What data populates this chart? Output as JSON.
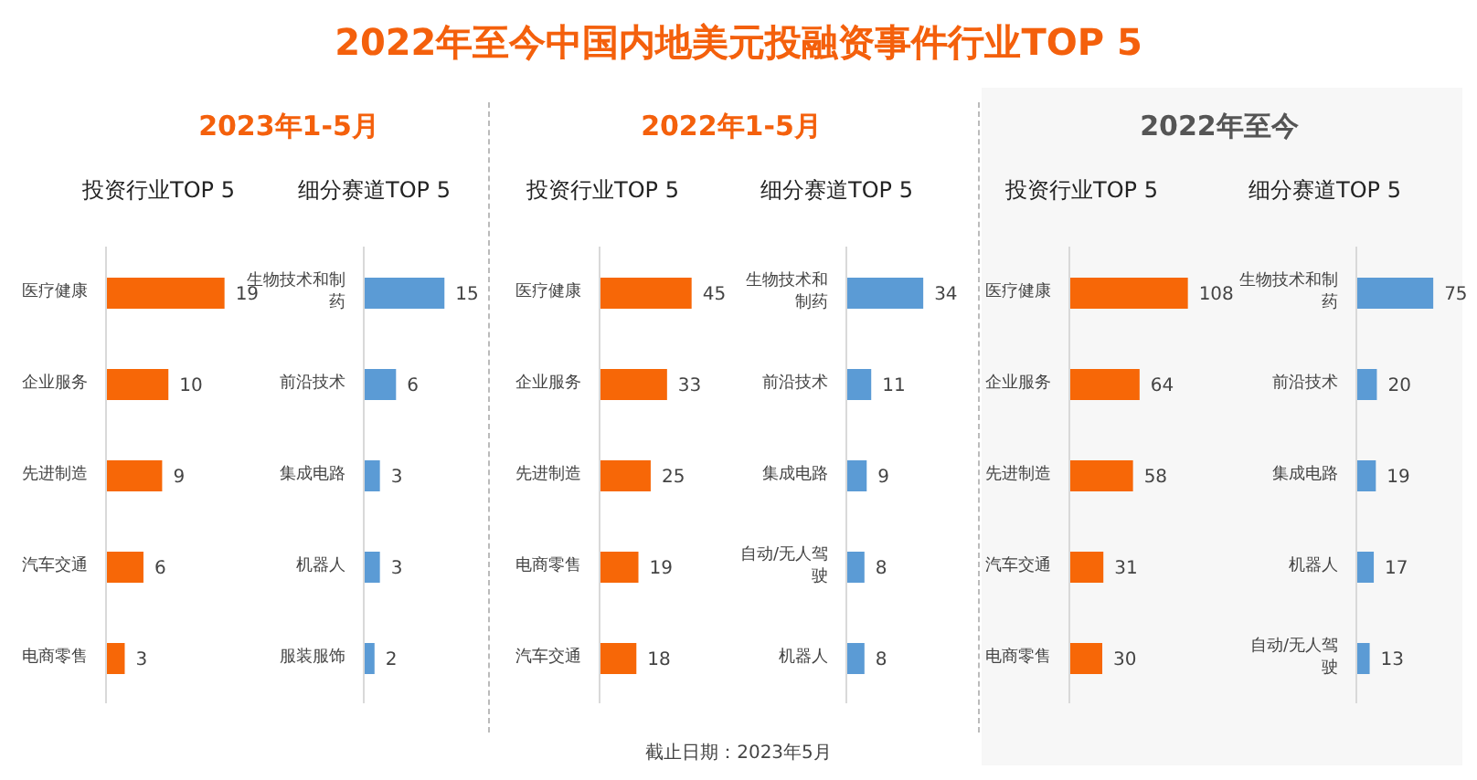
{
  "chart_data": [
    {
      "type": "other",
      "title": "2022年至今中国内地美元投融资事件行业TOP 5",
      "annotations": [
        "截止日期：2023年5月"
      ]
    },
    {
      "type": "bar",
      "orientation": "horizontal",
      "subtitle": "2023年1-5月",
      "title": "投资行业TOP 5",
      "categories": [
        "医疗健康",
        "企业服务",
        "先进制造",
        "汽车交通",
        "电商零售"
      ],
      "values": [
        19,
        10,
        9,
        6,
        3
      ],
      "color": "#f76707",
      "data_labels": true
    },
    {
      "type": "bar",
      "orientation": "horizontal",
      "title": "细分赛道TOP 5",
      "categories": [
        "生物技术和制药",
        "前沿技术",
        "集成电路",
        "机器人",
        "服装服饰"
      ],
      "values": [
        15,
        6,
        3,
        3,
        2
      ],
      "color": "#5b9bd5",
      "data_labels": true
    },
    {
      "type": "bar",
      "orientation": "horizontal",
      "subtitle": "2022年1-5月",
      "title": "投资行业TOP 5",
      "categories": [
        "医疗健康",
        "企业服务",
        "先进制造",
        "电商零售",
        "汽车交通"
      ],
      "values": [
        45,
        33,
        25,
        19,
        18
      ],
      "color": "#f76707",
      "data_labels": true
    },
    {
      "type": "bar",
      "orientation": "horizontal",
      "title": "细分赛道TOP 5",
      "categories": [
        "生物技术和制药",
        "前沿技术",
        "集成电路",
        "自动/无人驾驶",
        "机器人"
      ],
      "values": [
        34,
        11,
        9,
        8,
        8
      ],
      "color": "#5b9bd5",
      "data_labels": true
    },
    {
      "type": "bar",
      "orientation": "horizontal",
      "subtitle": "2022年至今",
      "title": "投资行业TOP 5",
      "categories": [
        "医疗健康",
        "企业服务",
        "先进制造",
        "汽车交通",
        "电商零售"
      ],
      "values": [
        108,
        64,
        58,
        31,
        30
      ],
      "color": "#f76707",
      "data_labels": true
    },
    {
      "type": "bar",
      "orientation": "horizontal",
      "title": "细分赛道TOP 5",
      "categories": [
        "生物技术和制药",
        "前沿技术",
        "集成电路",
        "机器人",
        "自动/无人驾驶"
      ],
      "values": [
        75,
        20,
        19,
        17,
        13
      ],
      "color": "#5b9bd5",
      "data_labels": true
    }
  ]
}
